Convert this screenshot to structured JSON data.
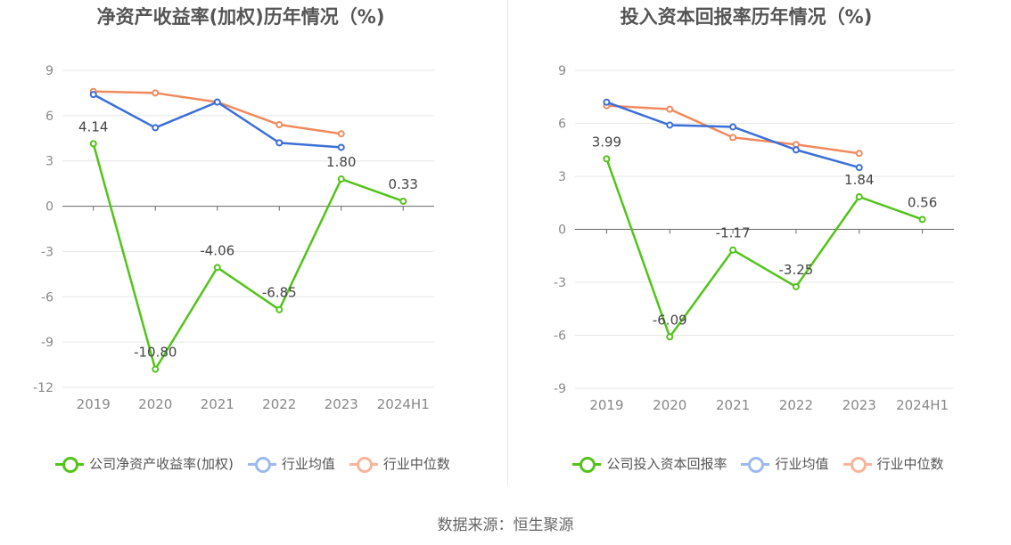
{
  "charts": [
    {
      "title": "净资产收益率(加权)历年情况（%)",
      "legend": [
        "公司净资产收益率(加权)",
        "行业均值",
        "行业中位数"
      ]
    },
    {
      "title": "投入资本回报率历年情况（%)",
      "legend": [
        "公司投入资本回报率",
        "行业均值",
        "行业中位数"
      ]
    }
  ],
  "source": "数据来源：恒生聚源",
  "colors": {
    "company": "#52c41a",
    "avg": "#3b6fd8",
    "median": "#f08a5d",
    "legend_avg": "#9db9f0",
    "legend_median": "#f7b59b"
  },
  "chart_data": [
    {
      "type": "line",
      "title": "净资产收益率(加权)历年情况（%)",
      "categories": [
        "2019",
        "2020",
        "2021",
        "2022",
        "2023",
        "2024H1"
      ],
      "ylim": [
        -12,
        9
      ],
      "yticks": [
        9,
        6,
        3,
        0,
        -3,
        -6,
        -9,
        -12
      ],
      "series": [
        {
          "name": "公司净资产收益率(加权)",
          "values": [
            4.14,
            -10.8,
            -4.06,
            -6.85,
            1.8,
            0.33
          ],
          "labels": [
            "4.14",
            "-10.80",
            "-4.06",
            "-6.85",
            "1.80",
            "0.33"
          ]
        },
        {
          "name": "行业均值",
          "values": [
            7.4,
            5.2,
            6.9,
            4.2,
            3.9,
            null
          ]
        },
        {
          "name": "行业中位数",
          "values": [
            7.6,
            7.5,
            6.9,
            5.4,
            4.8,
            null
          ]
        }
      ]
    },
    {
      "type": "line",
      "title": "投入资本回报率历年情况（%)",
      "categories": [
        "2019",
        "2020",
        "2021",
        "2022",
        "2023",
        "2024H1"
      ],
      "ylim": [
        -9,
        9
      ],
      "yticks": [
        9,
        6,
        3,
        0,
        -3,
        -6,
        -9
      ],
      "series": [
        {
          "name": "公司投入资本回报率",
          "values": [
            3.99,
            -6.09,
            -1.17,
            -3.25,
            1.84,
            0.56
          ],
          "labels": [
            "3.99",
            "-6.09",
            "-1.17",
            "-3.25",
            "1.84",
            "0.56"
          ]
        },
        {
          "name": "行业均值",
          "values": [
            7.2,
            5.9,
            5.8,
            4.5,
            3.5,
            null
          ]
        },
        {
          "name": "行业中位数",
          "values": [
            7.0,
            6.8,
            5.2,
            4.8,
            4.3,
            null
          ]
        }
      ]
    }
  ]
}
